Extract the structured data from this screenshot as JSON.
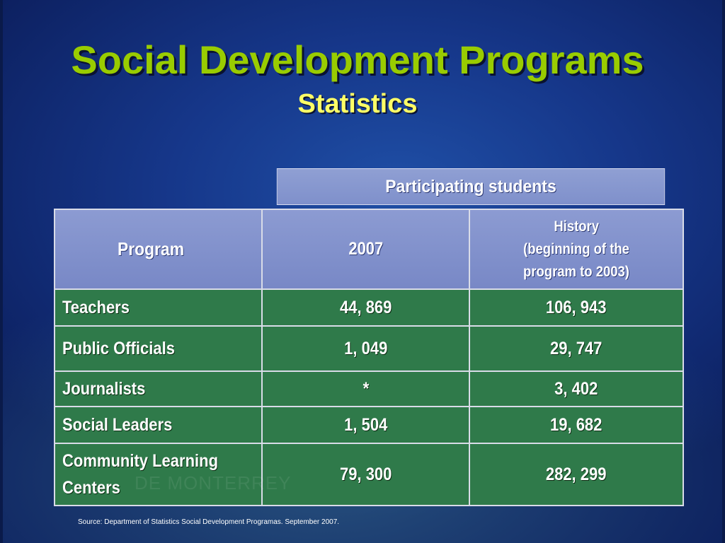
{
  "slide": {
    "title": "Social Development Programs",
    "subtitle": "Statistics",
    "source": "Source: Department of Statistics Social Development Programas. September 2007.",
    "watermark": "DE MONTERREY"
  },
  "table": {
    "group_header": "Participating students",
    "headers": {
      "program": "Program",
      "year_2007": "2007",
      "history_line1": "History",
      "history_line2": "(beginning of the program to 2003)"
    },
    "rows": [
      {
        "program": "Teachers",
        "y2007": "44, 869",
        "history": "106, 943"
      },
      {
        "program": "Public Officials",
        "y2007": "1, 049",
        "history": "29, 747"
      },
      {
        "program": "Journalists",
        "y2007": "*",
        "history": "3, 402"
      },
      {
        "program": "Social Leaders",
        "y2007": "1, 504",
        "history": "19, 682"
      },
      {
        "program": "Community Learning Centers",
        "y2007": "79, 300",
        "history": "282, 299"
      }
    ]
  },
  "colors": {
    "title": "#99cc00",
    "subtitle": "#ffff66",
    "header_fill": "#8291cc",
    "row_fill": "#2f7a4a",
    "background": "#16378a"
  }
}
